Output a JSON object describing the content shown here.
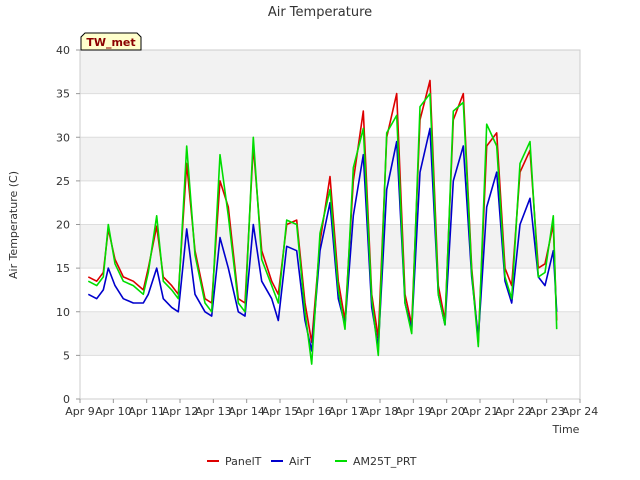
{
  "chart_data": {
    "type": "line",
    "title": "Air Temperature",
    "xlabel": "Time",
    "ylabel": "Air Temperature (C)",
    "badge": "TW_met",
    "xlim": [
      9,
      24
    ],
    "ylim": [
      0,
      40
    ],
    "x_ticks": [
      9,
      10,
      11,
      12,
      13,
      14,
      15,
      16,
      17,
      18,
      19,
      20,
      21,
      22,
      23,
      24
    ],
    "x_tick_labels": [
      "Apr 9",
      "Apr 10",
      "Apr 11",
      "Apr 12",
      "Apr 13",
      "Apr 14",
      "Apr 15",
      "Apr 16",
      "Apr 17",
      "Apr 18",
      "Apr 19",
      "Apr 20",
      "Apr 21",
      "Apr 22",
      "Apr 23",
      "Apr 24"
    ],
    "y_ticks": [
      0,
      5,
      10,
      15,
      20,
      25,
      30,
      35,
      40
    ],
    "y_tick_labels": [
      "0",
      "5",
      "10",
      "15",
      "20",
      "25",
      "30",
      "35",
      "40"
    ],
    "legend_position": "bottom-center",
    "series": [
      {
        "name": "PanelT",
        "color": "#dd0000",
        "x": [
          9.25,
          9.5,
          9.7,
          9.85,
          10.05,
          10.3,
          10.6,
          10.9,
          11.05,
          11.3,
          11.5,
          11.75,
          11.95,
          12.2,
          12.45,
          12.75,
          12.95,
          13.2,
          13.45,
          13.75,
          13.95,
          14.2,
          14.45,
          14.75,
          14.95,
          15.2,
          15.5,
          15.75,
          15.95,
          16.2,
          16.5,
          16.75,
          16.95,
          17.2,
          17.5,
          17.75,
          17.95,
          18.2,
          18.5,
          18.75,
          18.95,
          19.2,
          19.5,
          19.75,
          19.95,
          20.2,
          20.5,
          20.75,
          20.95,
          21.2,
          21.5,
          21.75,
          21.95,
          22.2,
          22.5,
          22.75,
          22.95,
          23.2,
          23.3
        ],
        "y": [
          14.0,
          13.5,
          14.5,
          19.5,
          16.0,
          14.0,
          13.5,
          12.5,
          15.0,
          19.8,
          14.0,
          13.0,
          12.0,
          27.0,
          17.0,
          11.5,
          11.0,
          25.0,
          22.0,
          11.5,
          11.0,
          29.0,
          17.0,
          13.5,
          12.0,
          20.0,
          20.5,
          11.0,
          6.5,
          18.0,
          25.5,
          13.5,
          9.0,
          25.0,
          33.0,
          12.0,
          7.0,
          30.0,
          35.0,
          12.0,
          8.5,
          32.0,
          36.5,
          13.0,
          9.0,
          32.0,
          35.0,
          15.0,
          6.5,
          29.0,
          30.5,
          15.0,
          13.0,
          26.0,
          28.5,
          15.0,
          15.5,
          20.0,
          9.0
        ]
      },
      {
        "name": "AirT",
        "color": "#0000cc",
        "x": [
          9.25,
          9.5,
          9.7,
          9.85,
          10.05,
          10.3,
          10.6,
          10.9,
          11.05,
          11.3,
          11.5,
          11.75,
          11.95,
          12.2,
          12.45,
          12.75,
          12.95,
          13.2,
          13.45,
          13.75,
          13.95,
          14.2,
          14.45,
          14.75,
          14.95,
          15.2,
          15.5,
          15.75,
          15.95,
          16.2,
          16.5,
          16.75,
          16.95,
          17.2,
          17.5,
          17.75,
          17.95,
          18.2,
          18.5,
          18.75,
          18.95,
          19.2,
          19.5,
          19.75,
          19.95,
          20.2,
          20.5,
          20.75,
          20.95,
          21.2,
          21.5,
          21.75,
          21.95,
          22.2,
          22.5,
          22.75,
          22.95,
          23.2,
          23.3
        ],
        "y": [
          12.0,
          11.5,
          12.5,
          15.0,
          13.0,
          11.5,
          11.0,
          11.0,
          12.0,
          15.0,
          11.5,
          10.5,
          10.0,
          19.5,
          12.0,
          10.0,
          9.5,
          18.5,
          15.0,
          10.0,
          9.5,
          20.0,
          13.5,
          11.5,
          9.0,
          17.5,
          17.0,
          9.0,
          5.5,
          17.0,
          22.5,
          11.5,
          8.5,
          21.0,
          28.0,
          10.5,
          6.0,
          24.0,
          29.5,
          11.0,
          8.0,
          26.0,
          31.0,
          12.0,
          8.5,
          25.0,
          29.0,
          14.0,
          7.0,
          22.0,
          26.0,
          13.5,
          11.0,
          20.0,
          23.0,
          14.0,
          13.0,
          17.0,
          10.0
        ]
      },
      {
        "name": "AM25T_PRT",
        "color": "#00dd00",
        "x": [
          9.25,
          9.5,
          9.7,
          9.85,
          10.05,
          10.3,
          10.6,
          10.9,
          11.05,
          11.3,
          11.5,
          11.75,
          11.95,
          12.2,
          12.45,
          12.75,
          12.95,
          13.2,
          13.45,
          13.75,
          13.95,
          14.2,
          14.45,
          14.75,
          14.95,
          15.2,
          15.5,
          15.75,
          15.95,
          16.2,
          16.5,
          16.75,
          16.95,
          17.2,
          17.5,
          17.75,
          17.95,
          18.2,
          18.5,
          18.75,
          18.95,
          19.2,
          19.5,
          19.75,
          19.95,
          20.2,
          20.5,
          20.75,
          20.95,
          21.2,
          21.5,
          21.75,
          21.95,
          22.2,
          22.5,
          22.75,
          22.95,
          23.2,
          23.3
        ],
        "y": [
          13.5,
          13.0,
          14.0,
          20.0,
          15.5,
          13.5,
          13.0,
          12.0,
          14.5,
          21.0,
          13.5,
          12.5,
          11.5,
          29.0,
          16.5,
          11.0,
          10.0,
          28.0,
          21.0,
          11.0,
          10.0,
          30.0,
          16.0,
          13.0,
          11.0,
          20.5,
          20.0,
          10.0,
          4.0,
          19.0,
          24.0,
          12.5,
          8.0,
          26.5,
          31.0,
          11.5,
          5.0,
          30.5,
          32.5,
          11.0,
          7.5,
          33.5,
          35.0,
          12.0,
          8.5,
          33.0,
          34.0,
          14.5,
          6.0,
          31.5,
          29.0,
          14.0,
          11.5,
          27.0,
          29.5,
          14.0,
          14.5,
          21.0,
          8.0
        ]
      }
    ]
  }
}
